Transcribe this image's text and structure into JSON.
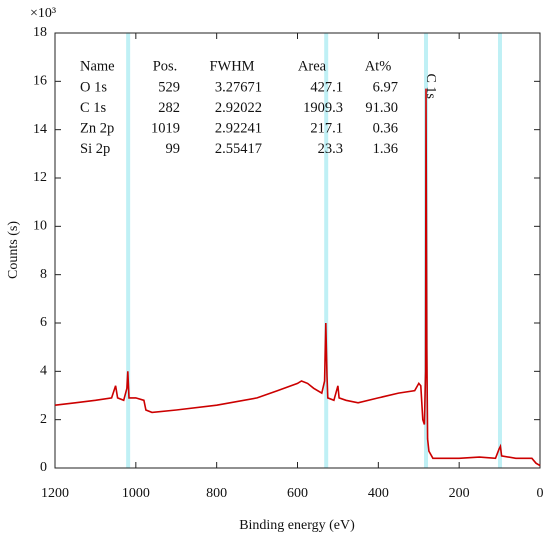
{
  "chart_data": {
    "type": "line",
    "multiplier": "×10³",
    "xlabel": "Binding energy (eV)",
    "ylabel": "Counts (s)",
    "xlim": [
      1200,
      0
    ],
    "xticks": [
      1200,
      1000,
      800,
      600,
      400,
      200,
      0
    ],
    "ylim": [
      0,
      18
    ],
    "yticks": [
      0,
      2,
      4,
      6,
      8,
      10,
      12,
      14,
      16,
      18
    ],
    "series": [
      {
        "color": "#cc0000",
        "x": [
          1200,
          1150,
          1100,
          1060,
          1050,
          1045,
          1030,
          1022,
          1020,
          1017,
          1000,
          980,
          975,
          960,
          900,
          800,
          700,
          650,
          600,
          590,
          575,
          560,
          540,
          533,
          530,
          527,
          525,
          510,
          500,
          497,
          480,
          450,
          400,
          350,
          310,
          300,
          295,
          290,
          286,
          283,
          282,
          280,
          278,
          275,
          265,
          200,
          150,
          110,
          101,
          98,
          95,
          60,
          20,
          10,
          0
        ],
        "values": [
          2.6,
          2.7,
          2.8,
          2.9,
          3.4,
          2.9,
          2.8,
          3.3,
          4.0,
          2.9,
          2.9,
          2.8,
          2.4,
          2.3,
          2.4,
          2.6,
          2.9,
          3.2,
          3.5,
          3.6,
          3.5,
          3.3,
          3.1,
          3.6,
          6.0,
          3.8,
          2.9,
          2.8,
          3.4,
          2.9,
          2.8,
          2.7,
          2.9,
          3.1,
          3.2,
          3.5,
          3.4,
          2.0,
          1.8,
          4.0,
          15.7,
          5.0,
          1.2,
          0.7,
          0.4,
          0.4,
          0.45,
          0.4,
          0.8,
          0.9,
          0.5,
          0.4,
          0.4,
          0.2,
          0.1
        ]
      }
    ],
    "peak_line_color": "#bff0f5",
    "annotations": [
      {
        "text": "C 1s",
        "x": 272,
        "y": 15.8
      }
    ],
    "table": {
      "columns": [
        "Name",
        "Pos.",
        "FWHM",
        "Area",
        "At%"
      ],
      "rows": [
        [
          "O 1s",
          529,
          "3.27671",
          "427.1",
          "6.97"
        ],
        [
          "C 1s",
          282,
          "2.92022",
          "1909.3",
          "91.30"
        ],
        [
          "Zn 2p",
          1019,
          "2.92241",
          "217.1",
          "0.36"
        ],
        [
          "Si 2p",
          99,
          "2.55417",
          "23.3",
          "1.36"
        ]
      ]
    }
  }
}
